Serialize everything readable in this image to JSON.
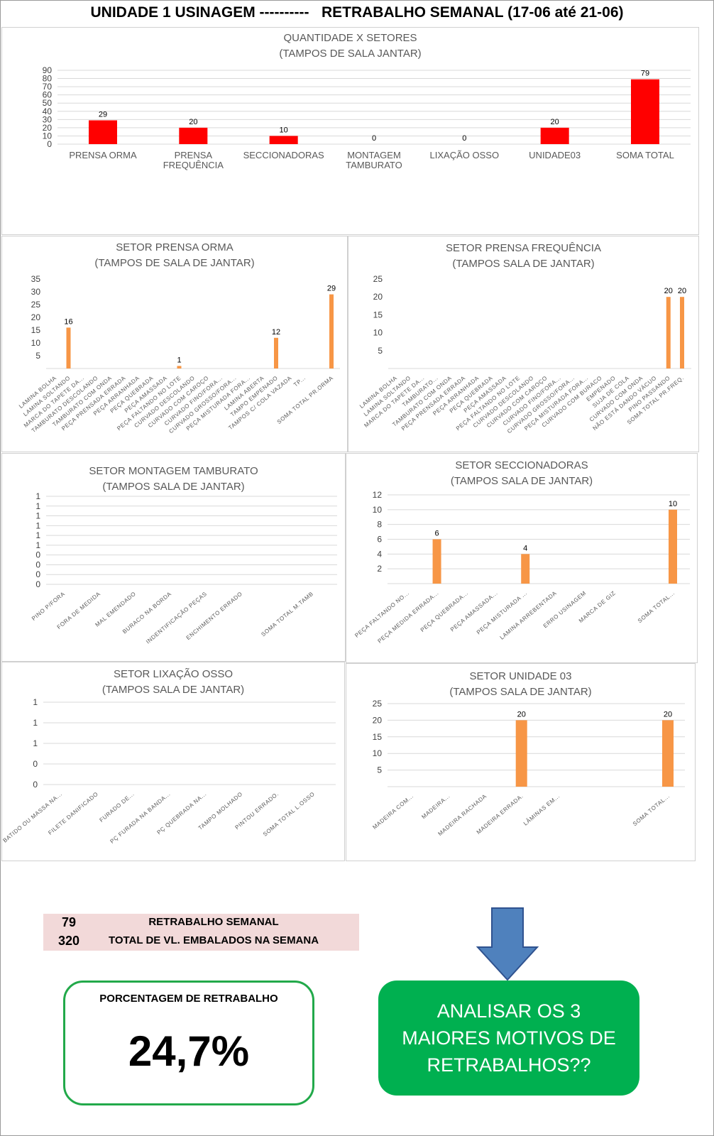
{
  "page_title": "UNIDADE 1 USINAGEM ----------   RETRABALHO SEMANAL (17-06 até 21-06)",
  "colors": {
    "top_bars": "#ff0000",
    "sector_bars": "#f79646",
    "percent_border": "#22a94a",
    "cta_bg": "#00b050",
    "summary_bg": "#f2d9d9",
    "arrow": "#4f81bd"
  },
  "chart_data": [
    {
      "id": "setores",
      "type": "bar",
      "title": "QUANTIDADE X SETORES",
      "subtitle": "(TAMPOS DE SALA JANTAR)",
      "categories": [
        "PRENSA ORMA",
        "PRENSA\nFREQUÊNCIA",
        "SECCIONADORAS",
        "MONTAGEM\nTAMBURATO",
        "LIXAÇÃO OSSO",
        "UNIDADE03",
        "SOMA TOTAL"
      ],
      "values": [
        29,
        20,
        10,
        0,
        0,
        20,
        79
      ],
      "yticks": [
        "0",
        "10",
        "20",
        "30",
        "40",
        "50",
        "60",
        "70",
        "80",
        "90"
      ],
      "ylim": [
        0,
        90
      ],
      "grid": true,
      "data_labels": true
    },
    {
      "id": "prensa_orma",
      "type": "bar",
      "title": "SETOR PRENSA ORMA",
      "subtitle": "(TAMPOS DE SALA DE JANTAR)",
      "categories": [
        "LAMINA BOLHA",
        "LAMINA SOLTANDO",
        "MARCA DO TAPETE DA...",
        "TAMBURATO DESCOLANDO",
        "TAMBURATO COM ONDA",
        "PEÇA PRENSADA ERRADA",
        "PEÇA ARRANHADA",
        "PEÇA QUEBRADA",
        "PEÇA AMASSADA",
        "PEÇA FALTANDO NO LOTE",
        "CURVADO DESCOLANDO",
        "CURVADO COM CAROÇO",
        "CURVADO FINO/FORA...",
        "CURVADO GROSSO/FORA...",
        "PEÇA MISTURADA FORA...",
        "LAMINA ABERTA",
        "TAMPO EMPENADO",
        "TAMPOS C/ COLA VAZADA",
        "TP...",
        "",
        "SOMA TOTAL PR.ORMA"
      ],
      "values": [
        null,
        16,
        null,
        null,
        null,
        null,
        null,
        null,
        null,
        1,
        null,
        null,
        null,
        null,
        null,
        null,
        12,
        null,
        null,
        null,
        29
      ],
      "yticks": [
        "5",
        "10",
        "15",
        "20",
        "25",
        "30",
        "35"
      ],
      "ylim": [
        0,
        35
      ],
      "grid": false,
      "data_labels": true
    },
    {
      "id": "prensa_frequencia",
      "type": "bar",
      "title": "SETOR PRENSA FREQUÊNCIA",
      "subtitle": "(TAMPOS SALA DE JANTAR)",
      "categories": [
        "LAMINA BOLHA",
        "LAMINA SOLTANDO",
        "MARCA DO TAPETE DA...",
        "TAMBURATO...",
        "TAMBURATO COM ONDA",
        "PEÇA PRENSADA ERRADA",
        "PEÇA ARRANHADA",
        "PEÇA QUEBRADA",
        "PEÇA AMASSADA",
        "PEÇA FALTANDO NO LOTE",
        "CURVADO DESCOLANDO",
        "CURVADO COM CAROÇO",
        "CURVADO FINO/FORA...",
        "CURVADO GROSSO/FORA...",
        "PEÇA MISTURADA FORA...",
        "CURVADO COM BURACO",
        "EMPENADO",
        "SUJA DE COLA",
        "CURVADO COM ONDA",
        "NÃO ESTÁ DANDO VÁCUO",
        "PINO PASSANDO",
        "SOMA TOTAL PR.FREQ."
      ],
      "values": [
        null,
        null,
        null,
        null,
        null,
        null,
        null,
        null,
        null,
        null,
        null,
        null,
        null,
        null,
        null,
        null,
        null,
        null,
        null,
        null,
        20,
        20
      ],
      "yticks": [
        "5",
        "10",
        "15",
        "20",
        "25"
      ],
      "ylim": [
        0,
        25
      ],
      "grid": false,
      "data_labels": true
    },
    {
      "id": "montagem_tamburato",
      "type": "bar",
      "title": "SETOR  MONTAGEM TAMBURATO",
      "subtitle": "(TAMPOS SALA DE JANTAR)",
      "categories": [
        "PINO P/FORA",
        "FORA DE MEDIDA",
        "MAL EMENDADO",
        "BURACO NA BORDA",
        "INDENTIFICAÇÃO PEÇAS",
        "ENCHIMENTO  ERRADO",
        "",
        "SOMA TOTAL M.TAMB"
      ],
      "values": [
        null,
        null,
        null,
        null,
        null,
        null,
        null,
        null
      ],
      "yticks": [
        "0",
        "0",
        "0",
        "0",
        "1",
        "1",
        "1",
        "1",
        "1",
        "1"
      ],
      "ylim": [
        0,
        1
      ],
      "grid": true,
      "data_labels": false
    },
    {
      "id": "seccionadoras",
      "type": "bar",
      "title": "SETOR SECCIONADORAS",
      "subtitle": "(TAMPOS SALA DE JANTAR)",
      "categories": [
        "PEÇA FALTANDO NO...",
        "PEÇA MEDIDA ERRADA...",
        "PEÇA QUEBRADA...",
        "PEÇA AMASSADA...",
        "PEÇA MISTURADA ...",
        "LAMINA ARREBENTADA",
        "ERRO USINAGEM",
        "MARCA DE GIZ",
        "",
        "SOMA TOTAL..."
      ],
      "values": [
        null,
        6,
        null,
        null,
        4,
        null,
        null,
        null,
        null,
        10
      ],
      "yticks": [
        "2",
        "4",
        "6",
        "8",
        "10",
        "12"
      ],
      "ylim": [
        0,
        12
      ],
      "grid": true,
      "data_labels": true
    },
    {
      "id": "lixacao_osso",
      "type": "bar",
      "title": "SETOR LIXAÇÃO OSSO",
      "subtitle": "(TAMPOS SALA DE JANTAR)",
      "categories": [
        "BATIDO OU MASSA NA...",
        "FILETE DANIFICADO",
        "FURADO DE...",
        "PÇ FURADA NA BANDA...",
        "PÇ QUEBRADA NA...",
        "TAMPO MOLHADO",
        "PINTOU ERRADO.",
        "SOMA TOTAL L.OSSO"
      ],
      "values": [
        null,
        null,
        null,
        null,
        null,
        null,
        null,
        null
      ],
      "yticks": [
        "0",
        "0",
        "1",
        "1",
        "1"
      ],
      "ylim": [
        0,
        1
      ],
      "grid": true,
      "data_labels": false
    },
    {
      "id": "unidade03",
      "type": "bar",
      "title": "SETOR UNIDADE 03",
      "subtitle": "(TAMPOS SALA DE JANTAR)",
      "categories": [
        "MADEIRA COM...",
        "MADEIRA...",
        "MADEIRA RACHADA",
        "MADEIRA ERRADA.",
        "LÂMINAS EM...",
        "",
        "",
        "SOMA TOTAL..."
      ],
      "values": [
        null,
        null,
        null,
        20,
        null,
        null,
        null,
        20
      ],
      "yticks": [
        "5",
        "10",
        "15",
        "20",
        "25"
      ],
      "ylim": [
        0,
        25
      ],
      "grid": true,
      "data_labels": true
    }
  ],
  "summary": {
    "rows": [
      {
        "value": "79",
        "label": "RETRABALHO SEMANAL"
      },
      {
        "value": "320",
        "label": "TOTAL DE VL. EMBALADOS NA SEMANA"
      }
    ]
  },
  "percent_box": {
    "title": "PORCENTAGEM DE RETRABALHO",
    "value": "24,7%"
  },
  "cta": {
    "text": "ANALISAR OS 3 MAIORES MOTIVOS DE RETRABALHOS??"
  }
}
